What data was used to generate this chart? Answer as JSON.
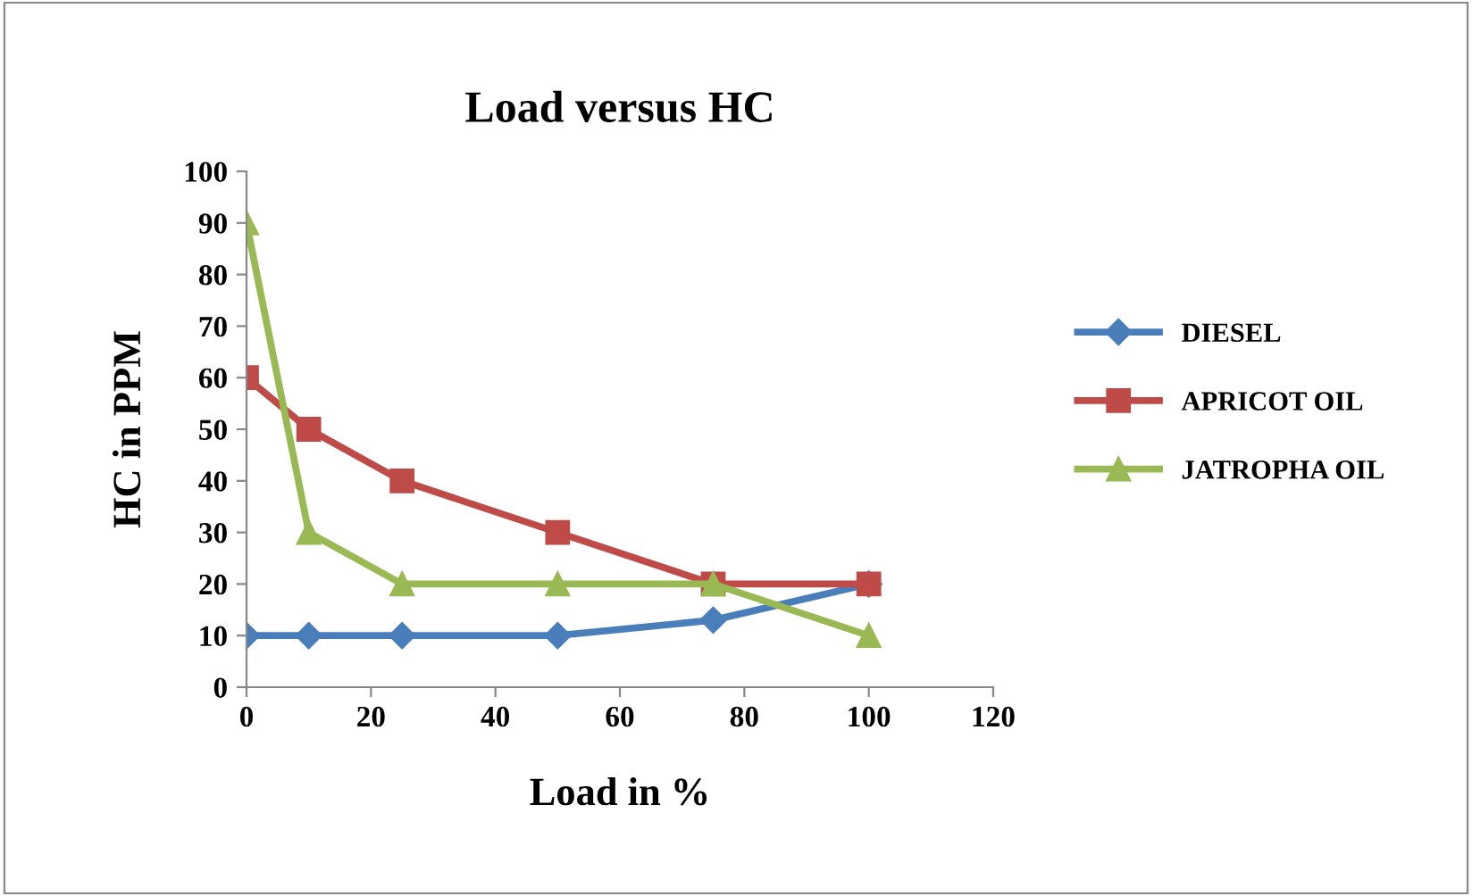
{
  "chart_data": {
    "type": "line",
    "title": "Load versus HC",
    "xlabel": "Load in %",
    "ylabel": "HC in PPM",
    "x": [
      0,
      10,
      25,
      50,
      75,
      100
    ],
    "series": [
      {
        "name": "DIESEL",
        "color": "#4a7ebb",
        "marker": "diamond",
        "values": [
          10,
          10,
          10,
          10,
          13,
          20
        ]
      },
      {
        "name": "APRICOT OIL",
        "color": "#be4b48",
        "marker": "square",
        "values": [
          60,
          50,
          40,
          30,
          20,
          20
        ]
      },
      {
        "name": "JATROPHA OIL",
        "color": "#98b954",
        "marker": "triangle",
        "values": [
          90,
          30,
          20,
          20,
          20,
          10
        ]
      }
    ],
    "xlim": [
      0,
      120
    ],
    "xticks": [
      0,
      20,
      40,
      60,
      80,
      100,
      120
    ],
    "ylim": [
      0,
      100
    ],
    "yticks": [
      0,
      10,
      20,
      30,
      40,
      50,
      60,
      70,
      80,
      90,
      100
    ],
    "grid": false,
    "legend": "right",
    "line_style": "solid"
  }
}
